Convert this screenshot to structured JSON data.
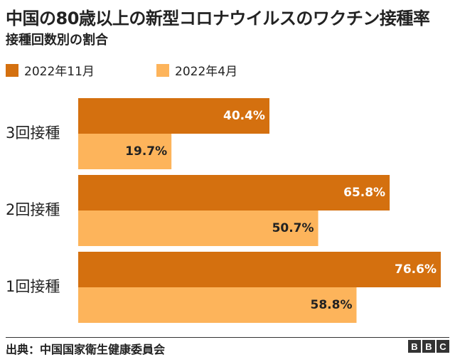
{
  "header": {
    "title": "中国の80歳以上の新型コロナウイルスのワクチン接種率",
    "subtitle": "接種回数別の割合"
  },
  "footer": {
    "source": "出典：中国国家衛生健康委員会",
    "logo": [
      "B",
      "B",
      "C"
    ]
  },
  "chart_data": {
    "type": "bar",
    "orientation": "horizontal",
    "categories": [
      "3回接種",
      "2回接種",
      "1回接種"
    ],
    "series": [
      {
        "name": "2022年11月",
        "color": "#d4700f",
        "values": [
          40.4,
          65.8,
          76.6
        ],
        "labels": [
          "40.4%",
          "65.8%",
          "76.6%"
        ]
      },
      {
        "name": "2022年4月",
        "color": "#fdb45b",
        "values": [
          19.7,
          50.7,
          58.8
        ],
        "labels": [
          "19.7%",
          "50.7%",
          "58.8%"
        ]
      }
    ],
    "xlim": [
      0,
      76.6
    ],
    "grid": false,
    "legend": "top-left"
  }
}
